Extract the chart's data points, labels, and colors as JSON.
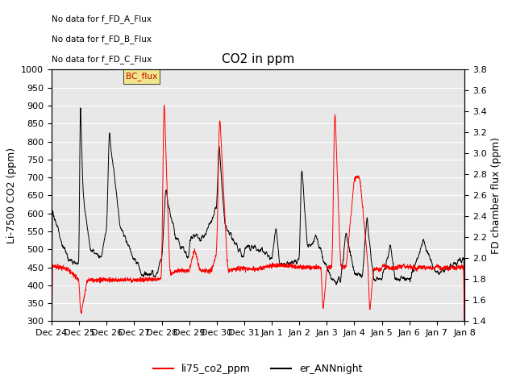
{
  "title": "CO2 in ppm",
  "ylabel_left": "Li-7500 CO2 (ppm)",
  "ylabel_right": "FD chamber flux (ppm)",
  "ylim_left": [
    300,
    1000
  ],
  "ylim_right": [
    1.4,
    3.8
  ],
  "xtick_labels": [
    "Dec 24",
    "Dec 25",
    "Dec 26",
    "Dec 27",
    "Dec 28",
    "Dec 29",
    "Dec 30",
    "Dec 31",
    "Jan 1",
    "Jan 2",
    "Jan 3",
    "Jan 4",
    "Jan 5",
    "Jan 6",
    "Jan 7",
    "Jan 8"
  ],
  "legend_labels": [
    "li75_co2_ppm",
    "er_ANNnight"
  ],
  "legend_colors": [
    "red",
    "black"
  ],
  "text_annotations": [
    "No data for f_FD_A_Flux",
    "No data for f_FD_B_Flux",
    "No data for f_FD_C_Flux"
  ],
  "bc_flux_label": "BC_flux",
  "bc_flux_color": "#cc0000",
  "bc_flux_bg": "#f0e68c",
  "background_color": "#e8e8e8",
  "grid_color": "white",
  "title_fontsize": 11,
  "axis_label_fontsize": 9,
  "tick_fontsize": 8,
  "legend_fontsize": 9,
  "annotation_fontsize": 7.5
}
